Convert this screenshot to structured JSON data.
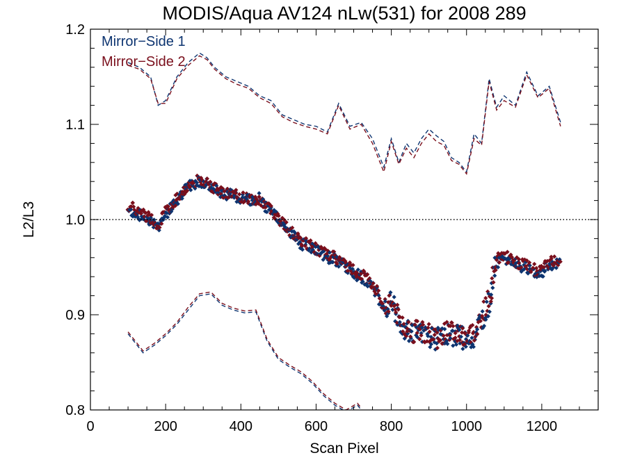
{
  "chart_data": {
    "type": "scatter",
    "title": "MODIS/Aqua AV124 nLw(531) for 2008 289",
    "xlabel": "Scan Pixel",
    "ylabel": "L2/L3",
    "xlim": [
      0,
      1350
    ],
    "ylim": [
      0.8,
      1.2
    ],
    "x_ticks": [
      0,
      200,
      400,
      600,
      800,
      1000,
      1200
    ],
    "x_tick_labels": [
      "0",
      "200",
      "400",
      "600",
      "800",
      "1000",
      "1200"
    ],
    "y_ticks": [
      0.8,
      0.9,
      1.0,
      1.1,
      1.2
    ],
    "y_tick_labels": [
      "0.8",
      "0.9",
      "1.0",
      "1.1",
      "1.2"
    ],
    "reference_line": {
      "y": 1.0,
      "style": "dotted",
      "color": "#000000"
    },
    "legend_position": "top-left",
    "series": [
      {
        "name": "Mirror−Side 1",
        "color": "#0d3470",
        "points_x": [
          100,
          130,
          160,
          180,
          200,
          230,
          260,
          290,
          310,
          330,
          360,
          390,
          420,
          450,
          470,
          500,
          530,
          560,
          590,
          620,
          650,
          680,
          710,
          740,
          760,
          780,
          800,
          820,
          840,
          860,
          880,
          900,
          920,
          940,
          960,
          980,
          1000,
          1020,
          1040,
          1060,
          1080,
          1100,
          1130,
          1160,
          1190,
          1220,
          1250
        ],
        "points_y": [
          1.01,
          1.005,
          1.0,
          0.993,
          1.005,
          1.02,
          1.035,
          1.041,
          1.038,
          1.032,
          1.027,
          1.024,
          1.02,
          1.022,
          1.012,
          1.0,
          0.987,
          0.975,
          0.97,
          0.962,
          0.958,
          0.95,
          0.942,
          0.935,
          0.925,
          0.905,
          0.913,
          0.893,
          0.883,
          0.878,
          0.88,
          0.878,
          0.873,
          0.878,
          0.88,
          0.878,
          0.873,
          0.878,
          0.895,
          0.912,
          0.955,
          0.96,
          0.952,
          0.95,
          0.942,
          0.952,
          0.955
        ],
        "upper_envelope_x": [
          100,
          130,
          160,
          180,
          200,
          230,
          260,
          290,
          310,
          330,
          360,
          390,
          420,
          450,
          480,
          510,
          540,
          570,
          600,
          630,
          660,
          690,
          720,
          750,
          780,
          800,
          820,
          840,
          860,
          880,
          900,
          920,
          940,
          960,
          980,
          1000,
          1020,
          1040,
          1060,
          1080,
          1100,
          1130,
          1160,
          1190,
          1220,
          1250
        ],
        "upper_envelope_y": [
          1.165,
          1.16,
          1.15,
          1.12,
          1.125,
          1.15,
          1.165,
          1.175,
          1.17,
          1.16,
          1.15,
          1.145,
          1.14,
          1.13,
          1.125,
          1.11,
          1.105,
          1.1,
          1.098,
          1.092,
          1.122,
          1.098,
          1.102,
          1.085,
          1.055,
          1.085,
          1.06,
          1.08,
          1.07,
          1.085,
          1.095,
          1.088,
          1.082,
          1.065,
          1.06,
          1.05,
          1.09,
          1.08,
          1.148,
          1.118,
          1.13,
          1.12,
          1.155,
          1.13,
          1.14,
          1.102
        ],
        "lower_envelope_x": [
          100,
          140,
          170,
          200,
          230,
          260,
          290,
          320,
          350,
          380,
          410,
          440,
          470,
          500,
          530,
          560,
          590,
          620,
          650,
          680,
          710,
          720
        ],
        "lower_envelope_y": [
          0.88,
          0.86,
          0.868,
          0.878,
          0.89,
          0.905,
          0.92,
          0.922,
          0.91,
          0.905,
          0.902,
          0.903,
          0.872,
          0.853,
          0.845,
          0.838,
          0.828,
          0.815,
          0.805,
          0.798,
          0.805,
          0.8
        ]
      },
      {
        "name": "Mirror−Side 2",
        "color": "#7a0f1c",
        "points_x": [
          100,
          130,
          160,
          180,
          200,
          230,
          260,
          290,
          310,
          330,
          360,
          390,
          420,
          450,
          470,
          500,
          530,
          560,
          590,
          620,
          650,
          680,
          710,
          740,
          760,
          780,
          800,
          820,
          840,
          860,
          880,
          900,
          920,
          940,
          960,
          980,
          1000,
          1020,
          1040,
          1060,
          1080,
          1100,
          1130,
          1160,
          1190,
          1220,
          1250
        ],
        "points_y": [
          1.015,
          1.008,
          1.002,
          0.995,
          1.008,
          1.022,
          1.036,
          1.042,
          1.04,
          1.033,
          1.028,
          1.025,
          1.022,
          1.02,
          1.015,
          1.002,
          0.988,
          0.977,
          0.972,
          0.965,
          0.96,
          0.952,
          0.945,
          0.937,
          0.927,
          0.908,
          0.915,
          0.896,
          0.886,
          0.882,
          0.884,
          0.88,
          0.876,
          0.88,
          0.884,
          0.88,
          0.876,
          0.882,
          0.898,
          0.915,
          0.96,
          0.962,
          0.955,
          0.952,
          0.945,
          0.955,
          0.958
        ],
        "upper_envelope_x": [
          100,
          130,
          160,
          180,
          200,
          230,
          260,
          290,
          310,
          330,
          360,
          390,
          420,
          450,
          480,
          510,
          540,
          570,
          600,
          630,
          660,
          690,
          720,
          750,
          780,
          800,
          820,
          840,
          860,
          880,
          900,
          920,
          940,
          960,
          980,
          1000,
          1020,
          1040,
          1060,
          1080,
          1100,
          1130,
          1160,
          1190,
          1220,
          1250
        ],
        "upper_envelope_y": [
          1.162,
          1.158,
          1.148,
          1.122,
          1.122,
          1.148,
          1.162,
          1.172,
          1.168,
          1.158,
          1.148,
          1.142,
          1.138,
          1.128,
          1.122,
          1.108,
          1.102,
          1.098,
          1.095,
          1.09,
          1.12,
          1.095,
          1.1,
          1.08,
          1.05,
          1.082,
          1.058,
          1.075,
          1.065,
          1.08,
          1.09,
          1.082,
          1.078,
          1.062,
          1.058,
          1.048,
          1.085,
          1.078,
          1.145,
          1.115,
          1.125,
          1.118,
          1.152,
          1.128,
          1.138,
          1.098
        ],
        "lower_envelope_x": [
          100,
          140,
          170,
          200,
          230,
          260,
          290,
          320,
          350,
          380,
          410,
          440,
          470,
          500,
          530,
          560,
          590,
          620,
          650,
          680,
          710,
          720
        ],
        "lower_envelope_y": [
          0.882,
          0.862,
          0.87,
          0.88,
          0.892,
          0.908,
          0.922,
          0.924,
          0.912,
          0.907,
          0.904,
          0.905,
          0.874,
          0.855,
          0.847,
          0.84,
          0.83,
          0.817,
          0.807,
          0.8,
          0.807,
          0.802
        ]
      }
    ]
  }
}
